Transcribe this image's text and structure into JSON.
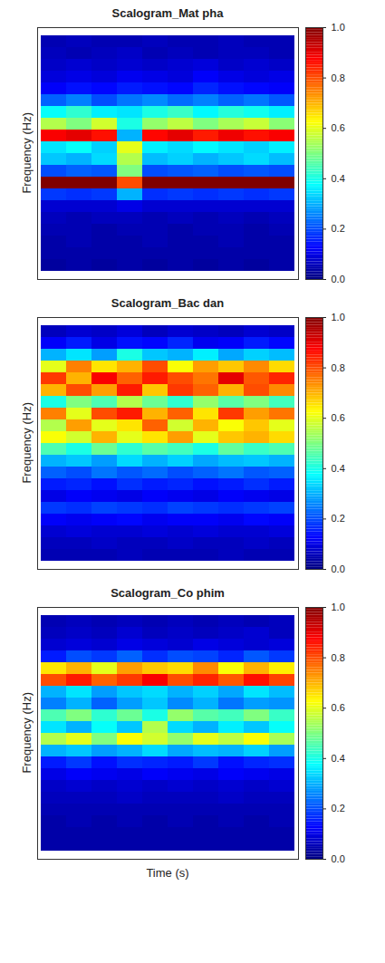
{
  "chart_data": [
    {
      "type": "heatmap",
      "title": "Scalogram_Mat pha",
      "ylabel": "Frequency (Hz)",
      "tick_labels": false,
      "colorbar": {
        "range": [
          0,
          1
        ],
        "ticks": [
          0,
          0.2,
          0.4,
          0.6,
          0.8,
          1
        ]
      },
      "cells": [
        [
          0.05,
          0.06,
          0.05,
          0.05,
          0.06,
          0.05,
          0.05,
          0.06,
          0.05,
          0.05
        ],
        [
          0.06,
          0.05,
          0.06,
          0.07,
          0.05,
          0.06,
          0.05,
          0.06,
          0.06,
          0.05
        ],
        [
          0.07,
          0.08,
          0.07,
          0.08,
          0.07,
          0.08,
          0.09,
          0.07,
          0.08,
          0.07
        ],
        [
          0.09,
          0.1,
          0.09,
          0.11,
          0.1,
          0.09,
          0.12,
          0.1,
          0.09,
          0.1
        ],
        [
          0.12,
          0.14,
          0.13,
          0.15,
          0.14,
          0.13,
          0.16,
          0.14,
          0.13,
          0.12
        ],
        [
          0.22,
          0.25,
          0.2,
          0.24,
          0.26,
          0.23,
          0.25,
          0.22,
          0.24,
          0.21
        ],
        [
          0.38,
          0.42,
          0.36,
          0.35,
          0.4,
          0.43,
          0.37,
          0.41,
          0.39,
          0.36
        ],
        [
          0.55,
          0.5,
          0.58,
          0.4,
          0.52,
          0.56,
          0.5,
          0.54,
          0.57,
          0.51
        ],
        [
          0.88,
          0.9,
          0.86,
          0.3,
          0.87,
          0.9,
          0.85,
          0.89,
          0.86,
          0.88
        ],
        [
          0.35,
          0.38,
          0.33,
          0.6,
          0.36,
          0.34,
          0.37,
          0.35,
          0.33,
          0.36
        ],
        [
          0.32,
          0.3,
          0.34,
          0.55,
          0.31,
          0.33,
          0.3,
          0.32,
          0.34,
          0.31
        ],
        [
          0.2,
          0.22,
          0.21,
          0.5,
          0.2,
          0.21,
          0.22,
          0.2,
          0.21,
          0.2
        ],
        [
          1,
          1,
          1,
          0.8,
          1,
          1,
          1,
          1,
          1,
          1
        ],
        [
          0.18,
          0.17,
          0.18,
          0.3,
          0.17,
          0.18,
          0.17,
          0.18,
          0.17,
          0.18
        ],
        [
          0.08,
          0.08,
          0.08,
          0.1,
          0.08,
          0.08,
          0.08,
          0.08,
          0.08,
          0.08
        ],
        [
          0.06,
          0.05,
          0.06,
          0.06,
          0.05,
          0.06,
          0.05,
          0.06,
          0.05,
          0.06
        ],
        [
          0.05,
          0.05,
          0.04,
          0.05,
          0.05,
          0.04,
          0.05,
          0.05,
          0.04,
          0.05
        ],
        [
          0.04,
          0.05,
          0.04,
          0.04,
          0.05,
          0.04,
          0.04,
          0.05,
          0.04,
          0.04
        ],
        [
          0.04,
          0.04,
          0.04,
          0.04,
          0.04,
          0.04,
          0.04,
          0.04,
          0.04,
          0.04
        ],
        [
          0.03,
          0.04,
          0.03,
          0.04,
          0.03,
          0.04,
          0.03,
          0.04,
          0.03,
          0.04
        ]
      ]
    },
    {
      "type": "heatmap",
      "title": "Scalogram_Bac dan",
      "ylabel": "Frequency (Hz)",
      "tick_labels": false,
      "colorbar": {
        "range": [
          0,
          1
        ],
        "ticks": [
          0,
          0.2,
          0.4,
          0.6,
          0.8,
          1
        ]
      },
      "cells": [
        [
          0.06,
          0.08,
          0.07,
          0.09,
          0.06,
          0.08,
          0.07,
          0.06,
          0.08,
          0.07
        ],
        [
          0.12,
          0.15,
          0.1,
          0.14,
          0.13,
          0.16,
          0.11,
          0.12,
          0.15,
          0.13
        ],
        [
          0.3,
          0.35,
          0.28,
          0.4,
          0.32,
          0.3,
          0.36,
          0.29,
          0.33,
          0.31
        ],
        [
          0.6,
          0.75,
          0.65,
          0.7,
          0.8,
          0.62,
          0.72,
          0.68,
          0.74,
          0.66
        ],
        [
          0.82,
          0.7,
          0.88,
          0.78,
          0.85,
          0.8,
          0.76,
          0.9,
          0.79,
          0.84
        ],
        [
          0.7,
          0.8,
          0.72,
          0.85,
          0.68,
          0.82,
          0.78,
          0.7,
          0.8,
          0.74
        ],
        [
          0.4,
          0.5,
          0.45,
          0.55,
          0.48,
          0.42,
          0.52,
          0.46,
          0.5,
          0.44
        ],
        [
          0.75,
          0.6,
          0.8,
          0.85,
          0.7,
          0.78,
          0.65,
          0.82,
          0.72,
          0.76
        ],
        [
          0.55,
          0.72,
          0.6,
          0.65,
          0.78,
          0.58,
          0.7,
          0.62,
          0.68,
          0.6
        ],
        [
          0.62,
          0.58,
          0.7,
          0.6,
          0.65,
          0.72,
          0.6,
          0.68,
          0.7,
          0.66
        ],
        [
          0.45,
          0.4,
          0.48,
          0.42,
          0.46,
          0.44,
          0.4,
          0.47,
          0.43,
          0.45
        ],
        [
          0.3,
          0.32,
          0.28,
          0.34,
          0.3,
          0.33,
          0.29,
          0.31,
          0.32,
          0.3
        ],
        [
          0.22,
          0.2,
          0.24,
          0.21,
          0.23,
          0.2,
          0.22,
          0.24,
          0.21,
          0.22
        ],
        [
          0.15,
          0.16,
          0.14,
          0.17,
          0.15,
          0.16,
          0.14,
          0.15,
          0.17,
          0.15
        ],
        [
          0.1,
          0.12,
          0.11,
          0.1,
          0.12,
          0.11,
          0.1,
          0.12,
          0.11,
          0.1
        ],
        [
          0.18,
          0.17,
          0.19,
          0.18,
          0.17,
          0.19,
          0.18,
          0.17,
          0.18,
          0.19
        ],
        [
          0.12,
          0.11,
          0.12,
          0.13,
          0.11,
          0.12,
          0.12,
          0.11,
          0.13,
          0.12
        ],
        [
          0.08,
          0.09,
          0.08,
          0.08,
          0.09,
          0.08,
          0.09,
          0.08,
          0.08,
          0.09
        ],
        [
          0.06,
          0.06,
          0.07,
          0.06,
          0.06,
          0.07,
          0.06,
          0.06,
          0.07,
          0.06
        ],
        [
          0.05,
          0.05,
          0.05,
          0.06,
          0.05,
          0.05,
          0.05,
          0.06,
          0.05,
          0.05
        ]
      ]
    },
    {
      "type": "heatmap",
      "title": "Scalogram_Co phim",
      "ylabel": "Frequency (Hz)",
      "xlabel": "Time (s)",
      "tick_labels": false,
      "colorbar": {
        "range": [
          0,
          1
        ],
        "ticks": [
          0,
          0.2,
          0.4,
          0.6,
          0.8,
          1
        ]
      },
      "cells": [
        [
          0.05,
          0.06,
          0.05,
          0.06,
          0.05,
          0.06,
          0.05,
          0.06,
          0.05,
          0.06
        ],
        [
          0.06,
          0.07,
          0.06,
          0.08,
          0.06,
          0.07,
          0.06,
          0.07,
          0.08,
          0.06
        ],
        [
          0.08,
          0.09,
          0.08,
          0.1,
          0.09,
          0.08,
          0.1,
          0.09,
          0.08,
          0.09
        ],
        [
          0.15,
          0.2,
          0.18,
          0.22,
          0.17,
          0.2,
          0.19,
          0.16,
          0.21,
          0.18
        ],
        [
          0.65,
          0.7,
          0.6,
          0.72,
          0.68,
          0.66,
          0.74,
          0.62,
          0.7,
          0.64
        ],
        [
          0.8,
          0.85,
          0.78,
          0.82,
          0.88,
          0.8,
          0.84,
          0.79,
          0.86,
          0.81
        ],
        [
          0.3,
          0.35,
          0.28,
          0.32,
          0.34,
          0.3,
          0.33,
          0.29,
          0.35,
          0.31
        ],
        [
          0.25,
          0.3,
          0.22,
          0.28,
          0.32,
          0.26,
          0.3,
          0.24,
          0.28,
          0.27
        ],
        [
          0.45,
          0.5,
          0.42,
          0.48,
          0.4,
          0.52,
          0.46,
          0.44,
          0.5,
          0.43
        ],
        [
          0.35,
          0.3,
          0.38,
          0.32,
          0.55,
          0.34,
          0.3,
          0.36,
          0.32,
          0.38
        ],
        [
          0.55,
          0.6,
          0.5,
          0.62,
          0.58,
          0.52,
          0.6,
          0.56,
          0.62,
          0.54
        ],
        [
          0.3,
          0.32,
          0.28,
          0.3,
          0.34,
          0.29,
          0.31,
          0.3,
          0.33,
          0.28
        ],
        [
          0.15,
          0.18,
          0.14,
          0.17,
          0.16,
          0.15,
          0.18,
          0.14,
          0.16,
          0.17
        ],
        [
          0.1,
          0.12,
          0.11,
          0.1,
          0.12,
          0.11,
          0.1,
          0.12,
          0.11,
          0.1
        ],
        [
          0.07,
          0.08,
          0.07,
          0.08,
          0.07,
          0.08,
          0.07,
          0.08,
          0.07,
          0.08
        ],
        [
          0.06,
          0.06,
          0.06,
          0.07,
          0.06,
          0.06,
          0.06,
          0.07,
          0.06,
          0.06
        ],
        [
          0.05,
          0.05,
          0.05,
          0.05,
          0.05,
          0.05,
          0.05,
          0.05,
          0.05,
          0.05
        ],
        [
          0.04,
          0.05,
          0.04,
          0.05,
          0.04,
          0.05,
          0.04,
          0.05,
          0.04,
          0.05
        ],
        [
          0.04,
          0.04,
          0.04,
          0.04,
          0.04,
          0.04,
          0.04,
          0.04,
          0.04,
          0.04
        ],
        [
          0.04,
          0.04,
          0.04,
          0.04,
          0.04,
          0.04,
          0.04,
          0.04,
          0.04,
          0.04
        ]
      ]
    }
  ]
}
